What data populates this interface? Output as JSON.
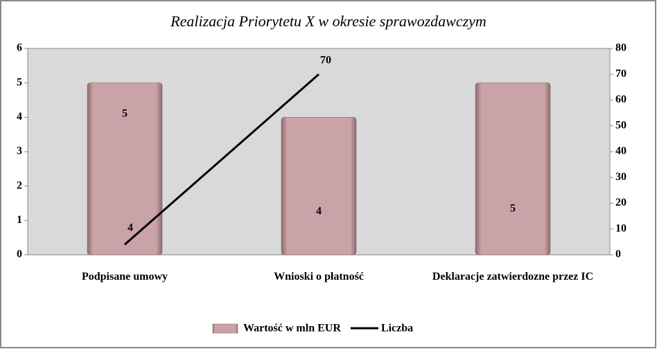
{
  "chart_data": {
    "type": "bar",
    "title": "Realizacja Priorytetu X w okresie sprawozdawczym",
    "categories": [
      "Podpisane umowy",
      "Wnioski o płatność",
      "Deklaracje zatwierdozne przez IC"
    ],
    "series": [
      {
        "name": "Wartość w mln EUR",
        "type": "bar",
        "color": "#c9a3a7",
        "values": [
          5,
          4,
          5
        ]
      },
      {
        "name": "Liczba",
        "type": "line",
        "axis": "y2",
        "color": "#000000",
        "values": [
          4,
          70,
          null
        ]
      }
    ],
    "ylim": [
      0,
      6
    ],
    "yticks": [
      0,
      1,
      2,
      3,
      4,
      5,
      6
    ],
    "y2lim": [
      0,
      80
    ],
    "y2ticks": [
      0,
      10,
      20,
      30,
      40,
      50,
      60,
      70,
      80
    ],
    "legend": "bottom"
  }
}
